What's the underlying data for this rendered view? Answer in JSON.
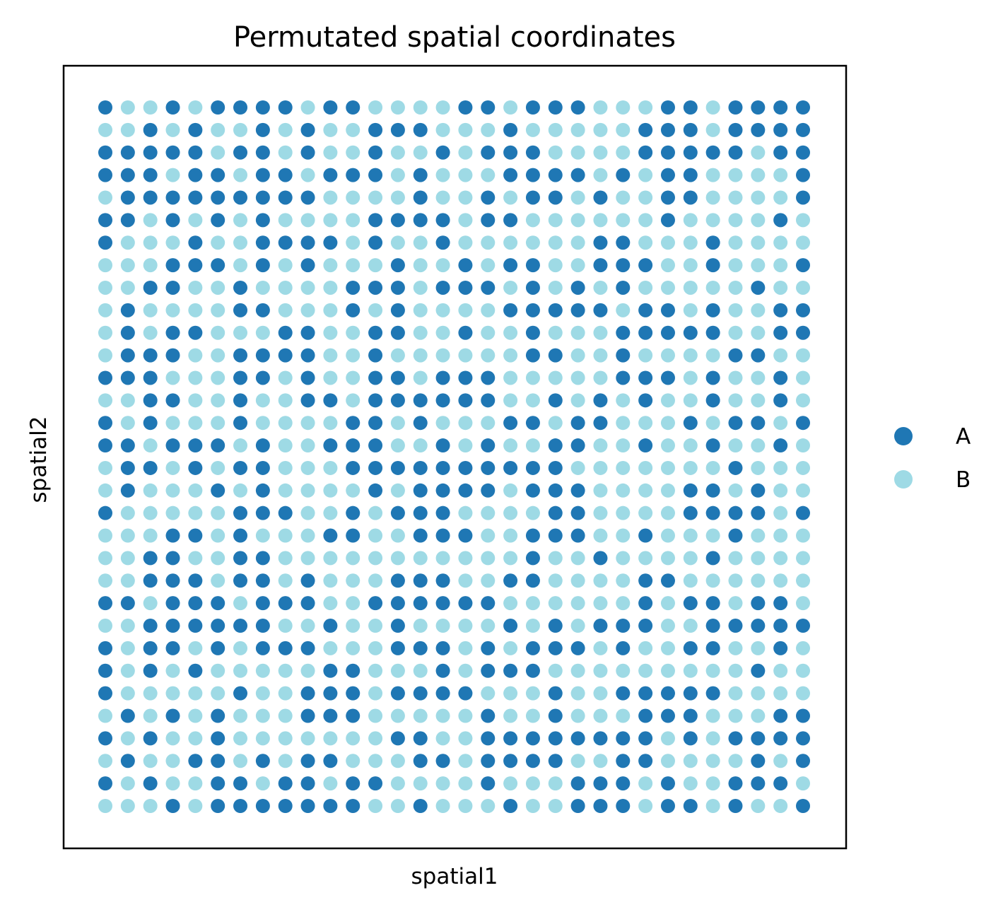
{
  "chart_data": {
    "type": "scatter",
    "title": "Permutated spatial coordinates",
    "xlabel": "spatial1",
    "ylabel": "spatial2",
    "xticks": false,
    "yticks": false,
    "grid": false,
    "legend_position": "right",
    "x": [
      1,
      2,
      3,
      4,
      5,
      6,
      7,
      8,
      9,
      10,
      11,
      12,
      13,
      14,
      15,
      16,
      17,
      18,
      19,
      20,
      21,
      22,
      23,
      24,
      25,
      26,
      27,
      28,
      29,
      30,
      31,
      32
    ],
    "y": [
      32,
      31,
      30,
      29,
      28,
      27,
      26,
      25,
      24,
      23,
      22,
      21,
      20,
      19,
      18,
      17,
      16,
      15,
      14,
      13,
      12,
      11,
      10,
      9,
      8,
      7,
      6,
      5,
      4,
      3,
      2,
      1
    ],
    "series": [
      {
        "name": "A",
        "color": "#1f77b4"
      },
      {
        "name": "B",
        "color": "#9edae5"
      }
    ],
    "grid_labels": [
      "ABBABAAAABAABBBBAABAAABBBAABAAAA",
      "BBABABBABABBAAABBBABBBBBAAABAAAA",
      "AAAAABAABABBABBABAAABBBBAAAAABAA",
      "AAABAABAABAAABABBBAAAABABAABBBBA",
      "BAAAAAAAAABBBBABBABAABABBAABBBBA",
      "AABABABABBBBAAAABAABBBBBBABBBBAB",
      "ABBBABBAAAABABBABBBBBBAABBBABBBB",
      "BBBAAABABABBBABBABAABBAAABBABBBA",
      "BBAABBABBBBAAABAAABABABABBBBBABB",
      "BABBBBAABBBABABBBBAAAAABAABABBAA",
      "BABAABBBAABBAABBABBABBBAAAAABBAA",
      "BAAABBAAAABBABBBBBBAABBABBBBAABB",
      "AAABBBAABABBAABAAABBBBBAAABABBAB",
      "BBAABBABBAABAAAAAABBABABABBABBAB",
      "ABABBBABBBBAABABBBAABAABBBABAABA",
      "AABAAABABBAAABBABABBAABBABBABBAB",
      "BAABABAABBBAAAAAAAAAABBBBBBBABBB",
      "BABBBABABBBBABAAAABAAABBBBAABABB",
      "ABBBBBAAABBABAAABBBBAABBBBAAAABA",
      "BBBAABABBBAABBAAABBAAABBABBBABBB",
      "BBAABBAABBBBBBBBBBBABBABBBBABBBB",
      "BBAAABAABABBBAAABBAABBBBAABBBBBB",
      "AABAAABAAABBAAAAAABBBBBBABAABAAB",
      "BBAAAAAABBABBABBBBABABAAABBAAAAA",
      "ABAABABAAABBBAAABABAAABABBAABBAB",
      "ABABABBBBBAABBBABAAABBBBBBBBBABB",
      "ABBBBBABBAAABAAAABBBABBAAAAABBBB",
      "BABABABBBAAABBBBBABBABBBAAABBBAA",
      "ABABBABBBBBBBAABBAAAAAAAABABAAAA",
      "BABBAABABAABBBAABAAAABBAABBBBABA",
      "ABABBAABAABAABBBBABBBAAABABBAAAB",
      "BBBABAAAAAAABBABBBABBAAABAABABBA"
    ]
  }
}
